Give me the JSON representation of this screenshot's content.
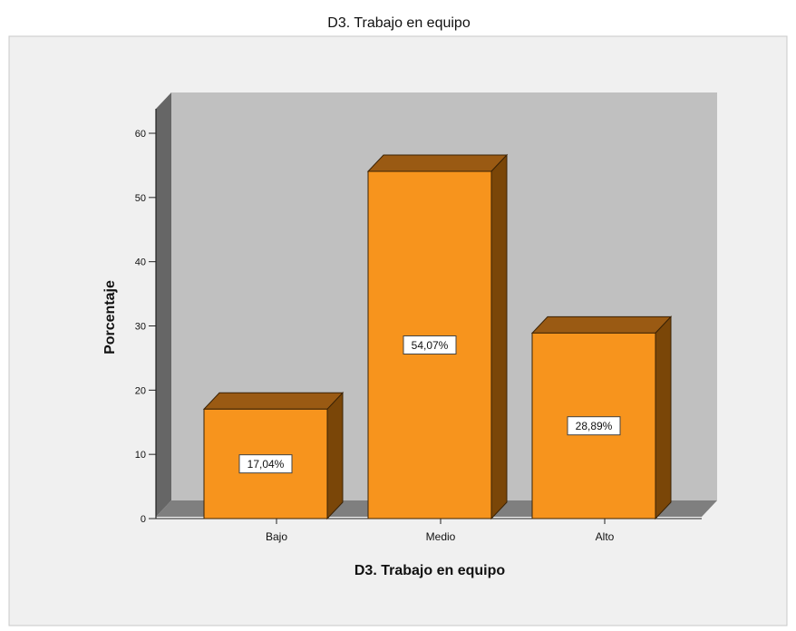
{
  "chart_data": {
    "type": "bar",
    "title": "D3. Trabajo en equipo",
    "xlabel": "D3. Trabajo en equipo",
    "ylabel": "Porcentaje",
    "categories": [
      "Bajo",
      "Medio",
      "Alto"
    ],
    "values": [
      17.04,
      54.07,
      28.89
    ],
    "value_labels": [
      "17,04%",
      "54,07%",
      "28,89%"
    ],
    "ylim": [
      0,
      60
    ],
    "yticks": [
      0,
      10,
      20,
      30,
      40,
      50,
      60
    ],
    "grid": false,
    "three_d": true,
    "colors": {
      "bar_front": "#f7941d",
      "bar_top": "#9a5a13",
      "bar_side": "#7a4608",
      "plot_back": "#c0c0c0",
      "plot_floor": "#7f7f7f",
      "plot_left_wall": "#666666",
      "frame_bg": "#f0f0f0"
    }
  }
}
